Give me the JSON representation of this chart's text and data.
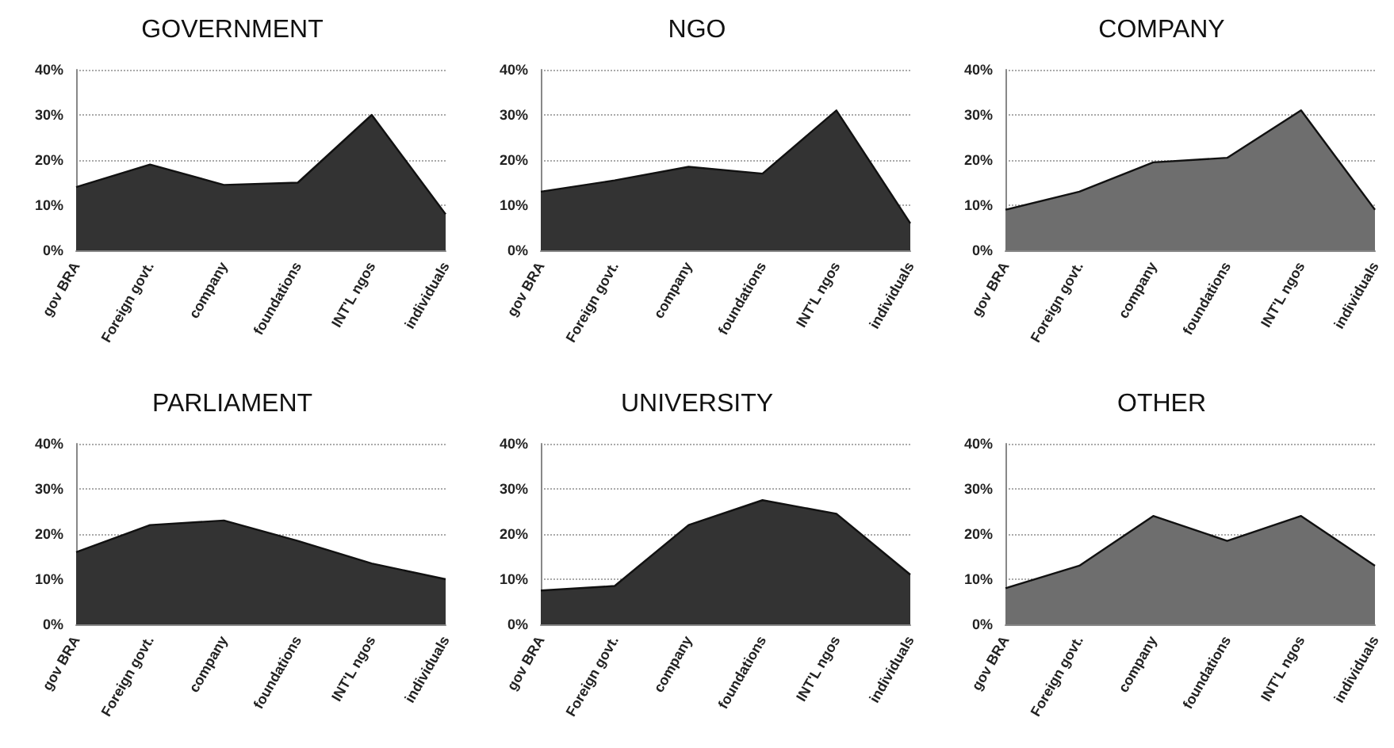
{
  "chart_data": [
    {
      "type": "area",
      "title": "GOVERNMENT",
      "categories": [
        "gov BRA",
        "Foreign govt.",
        "company",
        "foundations",
        "INT'L ngos",
        "individuals"
      ],
      "values": [
        14,
        19,
        14.5,
        15,
        30,
        8
      ],
      "color": "#333333",
      "ylim": [
        0,
        40
      ],
      "yticks": [
        {
          "value": 0,
          "label": "0%"
        },
        {
          "value": 10,
          "label": "10%"
        },
        {
          "value": 20,
          "label": "20%"
        },
        {
          "value": 30,
          "label": "30%"
        },
        {
          "value": 40,
          "label": "40%"
        }
      ],
      "grid": "y"
    },
    {
      "type": "area",
      "title": "NGO",
      "categories": [
        "gov BRA",
        "Foreign govt.",
        "company",
        "foundations",
        "INT'L ngos",
        "individuals"
      ],
      "values": [
        13,
        15.5,
        18.5,
        17,
        31,
        6
      ],
      "color": "#333333",
      "ylim": [
        0,
        40
      ],
      "yticks": [
        {
          "value": 0,
          "label": "0%"
        },
        {
          "value": 10,
          "label": "10%"
        },
        {
          "value": 20,
          "label": "20%"
        },
        {
          "value": 30,
          "label": "30%"
        },
        {
          "value": 40,
          "label": "40%"
        }
      ],
      "grid": "y"
    },
    {
      "type": "area",
      "title": "COMPANY",
      "categories": [
        "gov BRA",
        "Foreign govt.",
        "company",
        "foundations",
        "INT'L ngos",
        "individuals"
      ],
      "values": [
        9,
        13,
        19.5,
        20.5,
        31,
        9
      ],
      "color": "#6e6e6e",
      "ylim": [
        0,
        40
      ],
      "yticks": [
        {
          "value": 0,
          "label": "0%"
        },
        {
          "value": 10,
          "label": "10%"
        },
        {
          "value": 20,
          "label": "20%"
        },
        {
          "value": 30,
          "label": "30%"
        },
        {
          "value": 40,
          "label": "40%"
        }
      ],
      "grid": "y"
    },
    {
      "type": "area",
      "title": "PARLIAMENT",
      "categories": [
        "gov BRA",
        "Foreign govt.",
        "company",
        "foundations",
        "INT'L ngos",
        "individuals"
      ],
      "values": [
        16,
        22,
        23,
        18.5,
        13.5,
        10
      ],
      "color": "#333333",
      "ylim": [
        0,
        40
      ],
      "yticks": [
        {
          "value": 0,
          "label": "0%"
        },
        {
          "value": 10,
          "label": "10%"
        },
        {
          "value": 20,
          "label": "20%"
        },
        {
          "value": 30,
          "label": "30%"
        },
        {
          "value": 40,
          "label": "40%"
        }
      ],
      "grid": "y"
    },
    {
      "type": "area",
      "title": "UNIVERSITY",
      "categories": [
        "gov BRA",
        "Foreign govt.",
        "company",
        "foundations",
        "INT'L ngos",
        "individuals"
      ],
      "values": [
        7.5,
        8.5,
        22,
        27.5,
        24.5,
        11
      ],
      "color": "#333333",
      "ylim": [
        0,
        40
      ],
      "yticks": [
        {
          "value": 0,
          "label": "0%"
        },
        {
          "value": 10,
          "label": "10%"
        },
        {
          "value": 20,
          "label": "20%"
        },
        {
          "value": 30,
          "label": "30%"
        },
        {
          "value": 40,
          "label": "40%"
        }
      ],
      "grid": "y"
    },
    {
      "type": "area",
      "title": "OTHER",
      "categories": [
        "gov BRA",
        "Foreign govt.",
        "company",
        "foundations",
        "INT'L ngos",
        "individuals"
      ],
      "values": [
        8,
        13,
        24,
        18.5,
        24,
        13
      ],
      "color": "#6e6e6e",
      "ylim": [
        0,
        40
      ],
      "yticks": [
        {
          "value": 0,
          "label": "0%"
        },
        {
          "value": 10,
          "label": "10%"
        },
        {
          "value": 20,
          "label": "20%"
        },
        {
          "value": 30,
          "label": "30%"
        },
        {
          "value": 40,
          "label": "40%"
        }
      ],
      "grid": "y"
    }
  ]
}
